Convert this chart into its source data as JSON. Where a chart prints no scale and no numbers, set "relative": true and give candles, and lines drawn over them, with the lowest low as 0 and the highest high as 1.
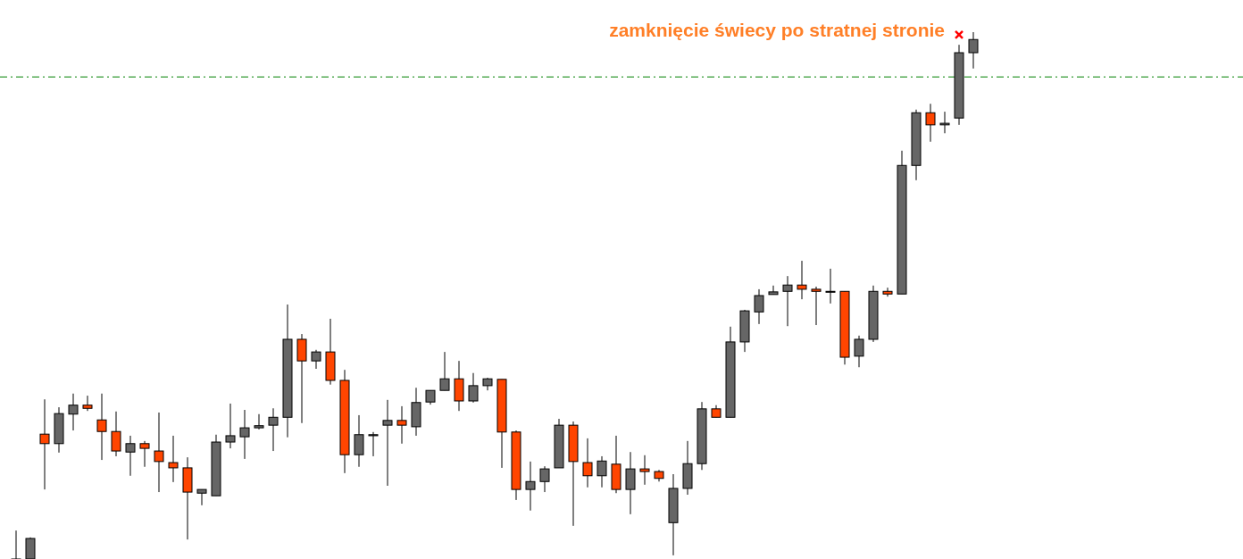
{
  "chart_data": {
    "type": "candlestick",
    "relative": true,
    "categories": [
      null,
      null,
      null,
      null,
      null,
      null,
      null,
      null,
      null,
      null,
      null,
      null,
      null,
      null,
      null,
      null,
      null,
      null,
      null,
      null,
      null,
      null,
      null,
      null,
      null,
      null,
      null,
      null,
      null,
      null,
      null,
      null,
      null,
      null,
      null,
      null,
      null,
      null,
      null,
      null,
      null,
      null,
      null,
      null,
      null,
      null,
      null,
      null,
      null,
      null,
      null,
      null,
      null,
      null,
      null,
      null,
      null,
      null,
      null,
      null,
      null,
      null,
      null,
      null,
      null,
      null,
      null,
      null
    ],
    "ohlc": [
      [
        0,
        0.054,
        0,
        0
      ],
      [
        0,
        0.041,
        0,
        0.039
      ],
      [
        0.237,
        0.303,
        0.132,
        0.219
      ],
      [
        0.219,
        0.288,
        0.202,
        0.276
      ],
      [
        0.275,
        0.314,
        0.244,
        0.292
      ],
      [
        0.292,
        0.31,
        0.281,
        0.286
      ],
      [
        0.264,
        0.314,
        0.188,
        0.242
      ],
      [
        0.242,
        0.28,
        0.195,
        0.205
      ],
      [
        0.203,
        0.234,
        0.158,
        0.219
      ],
      [
        0.219,
        0.224,
        0.175,
        0.21
      ],
      [
        0.205,
        0.278,
        0.127,
        0.185
      ],
      [
        0.183,
        0.234,
        0.146,
        0.173
      ],
      [
        0.173,
        0.193,
        0.037,
        0.127
      ],
      [
        0.125,
        0.132,
        0.102,
        0.132
      ],
      [
        0.12,
        0.236,
        0.12,
        0.222
      ],
      [
        0.222,
        0.295,
        0.21,
        0.234
      ],
      [
        0.232,
        0.283,
        0.19,
        0.249
      ],
      [
        0.249,
        0.275,
        0.246,
        0.253
      ],
      [
        0.254,
        0.286,
        0.205,
        0.269
      ],
      [
        0.269,
        0.483,
        0.231,
        0.417
      ],
      [
        0.417,
        0.427,
        0.258,
        0.376
      ],
      [
        0.376,
        0.397,
        0.361,
        0.393
      ],
      [
        0.393,
        0.456,
        0.331,
        0.339
      ],
      [
        0.339,
        0.359,
        0.163,
        0.198
      ],
      [
        0.198,
        0.273,
        0.175,
        0.236
      ],
      [
        0.234,
        0.241,
        0.195,
        0.236
      ],
      [
        0.254,
        0.302,
        0.139,
        0.263
      ],
      [
        0.263,
        0.29,
        0.219,
        0.254
      ],
      [
        0.251,
        0.325,
        0.234,
        0.297
      ],
      [
        0.298,
        0.32,
        0.293,
        0.32
      ],
      [
        0.32,
        0.393,
        0.32,
        0.342
      ],
      [
        0.342,
        0.376,
        0.281,
        0.3
      ],
      [
        0.3,
        0.353,
        0.297,
        0.329
      ],
      [
        0.329,
        0.344,
        0.32,
        0.342
      ],
      [
        0.341,
        0.341,
        0.173,
        0.241
      ],
      [
        0.241,
        0.244,
        0.112,
        0.132
      ],
      [
        0.132,
        0.185,
        0.092,
        0.147
      ],
      [
        0.147,
        0.176,
        0.127,
        0.171
      ],
      [
        0.173,
        0.266,
        0.173,
        0.254
      ],
      [
        0.254,
        0.261,
        0.063,
        0.185
      ],
      [
        0.183,
        0.229,
        0.136,
        0.158
      ],
      [
        0.158,
        0.195,
        0.136,
        0.186
      ],
      [
        0.18,
        0.234,
        0.125,
        0.132
      ],
      [
        0.132,
        0.203,
        0.085,
        0.171
      ],
      [
        0.171,
        0.197,
        0.141,
        0.166
      ],
      [
        0.166,
        0.169,
        0.147,
        0.153
      ],
      [
        0.069,
        0.161,
        0.007,
        0.134
      ],
      [
        0.134,
        0.224,
        0.122,
        0.181
      ],
      [
        0.181,
        0.298,
        0.169,
        0.285
      ],
      [
        0.285,
        0.292,
        0.269,
        0.269
      ],
      [
        0.269,
        0.441,
        0.269,
        0.412
      ],
      [
        0.412,
        0.473,
        0.393,
        0.471
      ],
      [
        0.469,
        0.512,
        0.446,
        0.5
      ],
      [
        0.502,
        0.519,
        0.502,
        0.507
      ],
      [
        0.508,
        0.537,
        0.442,
        0.52
      ],
      [
        0.52,
        0.566,
        0.493,
        0.512
      ],
      [
        0.512,
        0.517,
        0.444,
        0.508
      ],
      [
        0.508,
        0.551,
        0.485,
        0.508
      ],
      [
        0.508,
        0.508,
        0.369,
        0.383
      ],
      [
        0.385,
        0.424,
        0.364,
        0.417
      ],
      [
        0.417,
        0.519,
        0.412,
        0.508
      ],
      [
        0.508,
        0.515,
        0.498,
        0.503
      ],
      [
        0.503,
        0.775,
        0.503,
        0.747
      ],
      [
        0.747,
        0.853,
        0.719,
        0.847
      ],
      [
        0.847,
        0.864,
        0.792,
        0.824
      ],
      [
        0.824,
        0.849,
        0.808,
        0.827
      ],
      [
        0.837,
        0.976,
        0.824,
        0.961
      ],
      [
        0.961,
        1,
        0.931,
        0.986
      ]
    ],
    "colors": [
      "#666666",
      "#666666",
      "#ff4500",
      "#666666",
      "#666666",
      "#ff4500",
      "#ff4500",
      "#ff4500",
      "#666666",
      "#ff4500",
      "#ff4500",
      "#ff4500",
      "#ff4500",
      "#666666",
      "#666666",
      "#666666",
      "#666666",
      "#666666",
      "#666666",
      "#666666",
      "#ff4500",
      "#666666",
      "#ff4500",
      "#ff4500",
      "#666666",
      "#666666",
      "#666666",
      "#ff4500",
      "#666666",
      "#666666",
      "#666666",
      "#ff4500",
      "#666666",
      "#666666",
      "#ff4500",
      "#ff4500",
      "#666666",
      "#666666",
      "#666666",
      "#ff4500",
      "#ff4500",
      "#666666",
      "#ff4500",
      "#666666",
      "#ff4500",
      "#ff4500",
      "#666666",
      "#666666",
      "#666666",
      "#ff4500",
      "#666666",
      "#666666",
      "#666666",
      "#666666",
      "#666666",
      "#ff4500",
      "#ff4500",
      "#666666",
      "#ff4500",
      "#666666",
      "#666666",
      "#ff4500",
      "#666666",
      "#666666",
      "#ff4500",
      "#666666",
      "#666666",
      "#666666"
    ],
    "series": [
      {
        "type": "scatter",
        "color": "#ff0000",
        "marker": "cross",
        "values": [
          null,
          null,
          null,
          null,
          null,
          null,
          null,
          null,
          null,
          null,
          null,
          null,
          null,
          null,
          null,
          null,
          null,
          null,
          null,
          null,
          null,
          null,
          null,
          null,
          null,
          null,
          null,
          null,
          null,
          null,
          null,
          null,
          null,
          null,
          null,
          null,
          null,
          null,
          null,
          null,
          null,
          null,
          null,
          null,
          null,
          null,
          null,
          null,
          null,
          null,
          null,
          null,
          null,
          null,
          null,
          null,
          null,
          null,
          null,
          null,
          null,
          null,
          null,
          null,
          null,
          null,
          0.995,
          null
        ]
      }
    ],
    "ref_lines": [
      {
        "axis": "y",
        "value": 0.915,
        "color": "#008000",
        "line_style": "dashed"
      }
    ],
    "annotations": [
      "zamknięcie świecy po stratnej stronie"
    ]
  }
}
